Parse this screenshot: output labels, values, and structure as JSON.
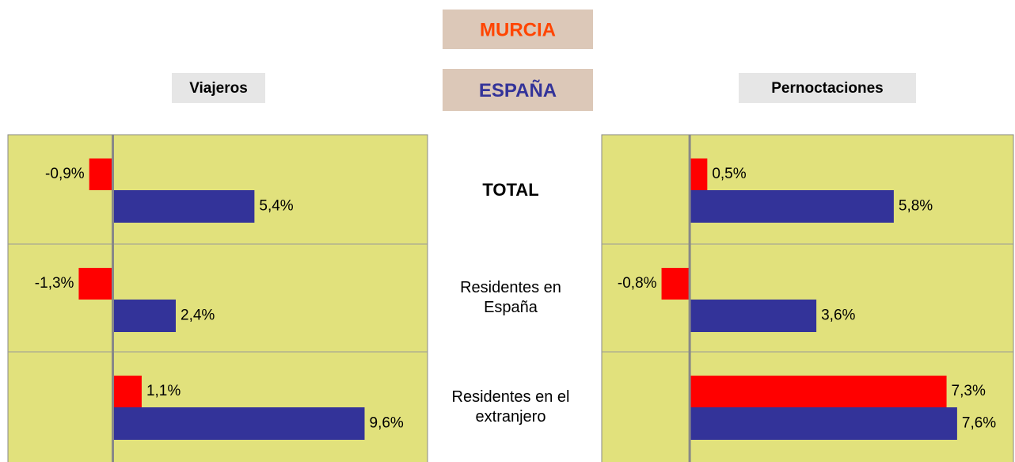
{
  "legend": [
    {
      "name": "MURCIA",
      "color": "#ff4500"
    },
    {
      "name": "ESPAÑA",
      "color": "#333399"
    }
  ],
  "categories": [
    "TOTAL",
    "Residentes en España",
    "Residentes en el extranjero"
  ],
  "chart_data": [
    {
      "type": "bar",
      "orientation": "horizontal",
      "title": "Viajeros",
      "xlim": [
        -4,
        12
      ],
      "series": [
        {
          "color": "#ff0000",
          "values": [
            -0.9,
            -1.3,
            1.1
          ],
          "value_labels": [
            "-0,9%",
            "-1,3%",
            "1,1%"
          ]
        },
        {
          "color": "#333399",
          "values": [
            5.4,
            2.4,
            9.6
          ],
          "value_labels": [
            "5,4%",
            "2,4%",
            "9,6%"
          ]
        }
      ]
    },
    {
      "type": "bar",
      "orientation": "horizontal",
      "title": "Pernoctaciones",
      "xlim": [
        -2.5,
        9.2
      ],
      "series": [
        {
          "color": "#ff0000",
          "values": [
            0.5,
            -0.8,
            7.3
          ],
          "value_labels": [
            "0,5%",
            "-0,8%",
            "7,3%"
          ]
        },
        {
          "color": "#333399",
          "values": [
            5.8,
            3.6,
            7.6
          ],
          "value_labels": [
            "5,8%",
            "3,6%",
            "7,6%"
          ]
        }
      ]
    }
  ]
}
